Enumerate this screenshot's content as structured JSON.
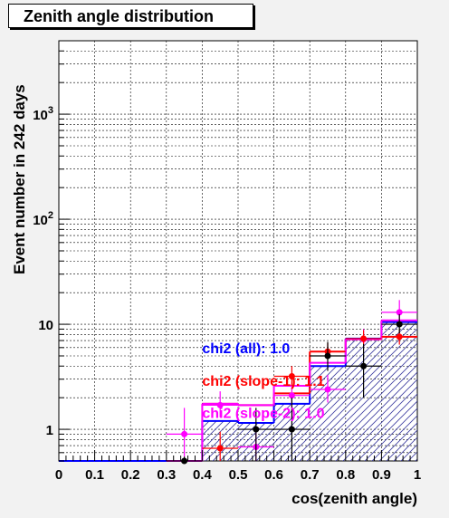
{
  "chart_data": {
    "type": "bar",
    "title": "Zenith angle distribution",
    "xlabel": "cos(zenith angle)",
    "ylabel": "Event number in 242 days",
    "xlim": [
      0,
      1
    ],
    "ylim_log": [
      0.5,
      5000
    ],
    "log_y": true,
    "grid": true,
    "bin_edges": [
      0,
      0.1,
      0.2,
      0.3,
      0.4,
      0.5,
      0.6,
      0.7,
      0.8,
      0.9,
      1.0
    ],
    "x_ticks": [
      "0",
      "0.1",
      "0.2",
      "0.3",
      "0.4",
      "0.5",
      "0.6",
      "0.7",
      "0.8",
      "0.9",
      "1"
    ],
    "y_ticks": [
      {
        "value": 1,
        "base": "1",
        "exp": ""
      },
      {
        "value": 10,
        "base": "10",
        "exp": ""
      },
      {
        "value": 100,
        "base": "10",
        "exp": "2"
      },
      {
        "value": 1000,
        "base": "10",
        "exp": "3"
      }
    ],
    "series": [
      {
        "kind": "hist",
        "color": "#0000ff",
        "values": [
          0.5,
          0.5,
          0.5,
          0.5,
          1.2,
          1.15,
          1.75,
          4.0,
          7.3,
          10.5
        ]
      },
      {
        "kind": "hist",
        "color": "#ff0000",
        "values": [
          null,
          null,
          null,
          null,
          1.75,
          1.7,
          2.2,
          5.5,
          7.2,
          7.6
        ]
      },
      {
        "kind": "hist",
        "color": "#ff00ff",
        "values": [
          null,
          null,
          null,
          0.5,
          1.75,
          1.7,
          2.6,
          4.3,
          7.2,
          10.9
        ]
      },
      {
        "kind": "points",
        "color": "#ff00ff",
        "points": [
          [
            0.35,
            0.9,
            0.55,
            1.6
          ],
          [
            0.45,
            1.7,
            1.3,
            2.3
          ],
          [
            0.55,
            0.68,
            0.5,
            1.0
          ],
          [
            0.65,
            2.1,
            1.6,
            2.8
          ],
          [
            0.75,
            2.4,
            1.8,
            3.3
          ],
          [
            0.85,
            7.2,
            6.0,
            9.0
          ],
          [
            0.95,
            13.0,
            10.8,
            17.0
          ]
        ]
      },
      {
        "kind": "points",
        "color": "#ff0000",
        "points": [
          [
            0.45,
            0.66,
            0.5,
            0.95
          ],
          [
            0.65,
            3.2,
            2.6,
            4.0
          ],
          [
            0.75,
            5.5,
            4.6,
            6.6
          ],
          [
            0.85,
            7.3,
            6.2,
            8.8
          ],
          [
            0.95,
            7.6,
            6.4,
            9.0
          ]
        ]
      },
      {
        "kind": "points",
        "color": "#000000",
        "points": [
          [
            0.35,
            0.5,
            0.5,
            0.55
          ],
          [
            0.55,
            1.0,
            0.5,
            1.6
          ],
          [
            0.65,
            1.0,
            0.5,
            2.0
          ],
          [
            0.75,
            5.0,
            3.6,
            6.8
          ],
          [
            0.85,
            4.0,
            2.0,
            6.5
          ],
          [
            0.95,
            10.0,
            8.2,
            12.5
          ]
        ]
      }
    ],
    "annotations": [
      {
        "text": "chi2 (all): 1.0",
        "color": "#0000ff",
        "x": 0.4,
        "y": 5.3
      },
      {
        "text": "chi2 (slope-1): 1.1",
        "color": "#ff0000",
        "x": 0.4,
        "y": 2.6
      },
      {
        "text": "chi2 (slope-2): 1.0",
        "color": "#ff00ff",
        "x": 0.4,
        "y": 1.28
      }
    ]
  }
}
